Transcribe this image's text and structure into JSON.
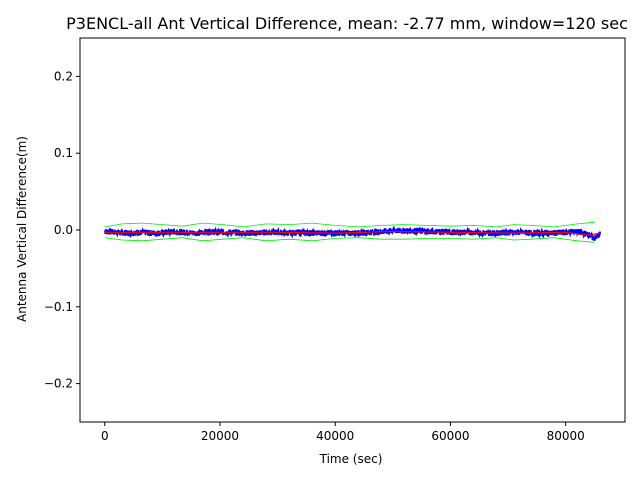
{
  "chart_data": {
    "type": "line",
    "title": "P3ENCL-all Ant Vertical Difference, mean: -2.77 mm, window=120 sec",
    "xlabel": "Time (sec)",
    "ylabel": "Antenna Vertical Difference(m)",
    "xlim": [
      -4300,
      90300
    ],
    "ylim": [
      -0.25,
      0.25
    ],
    "xticks": [
      0,
      20000,
      40000,
      60000,
      80000
    ],
    "xtick_labels": [
      "0",
      "20000",
      "40000",
      "60000",
      "80000"
    ],
    "yticks": [
      0.2,
      0.1,
      0.0,
      -0.1,
      -0.2
    ],
    "ytick_labels": [
      "0.2",
      "0.1",
      "0.0",
      "−0.1",
      "−0.2"
    ],
    "grid": false,
    "series": [
      {
        "role": "raw",
        "color": "#0000ff",
        "x": [
          0,
          2000,
          4000,
          6000,
          8000,
          10000,
          12000,
          14000,
          16000,
          18000,
          20000,
          22000,
          24000,
          26000,
          28000,
          30000,
          32000,
          34000,
          36000,
          38000,
          40000,
          42000,
          44000,
          46000,
          48000,
          50000,
          52000,
          54000,
          56000,
          58000,
          60000,
          62000,
          64000,
          66000,
          68000,
          70000,
          72000,
          74000,
          76000,
          78000,
          80000,
          82000,
          84000,
          85000,
          86000
        ],
        "y": [
          -0.002,
          -0.003,
          -0.004,
          -0.003,
          -0.004,
          -0.004,
          -0.002,
          -0.003,
          -0.004,
          -0.002,
          -0.003,
          -0.003,
          -0.004,
          -0.004,
          -0.003,
          -0.003,
          -0.004,
          -0.003,
          -0.004,
          -0.004,
          -0.004,
          -0.004,
          -0.004,
          -0.003,
          -0.002,
          -0.001,
          -0.001,
          -0.001,
          -0.002,
          -0.002,
          -0.003,
          -0.003,
          -0.003,
          -0.004,
          -0.004,
          -0.003,
          -0.003,
          -0.004,
          -0.004,
          -0.004,
          -0.003,
          -0.002,
          -0.006,
          -0.011,
          -0.005
        ],
        "spread": 0.004
      },
      {
        "role": "mean",
        "color": "#ff0000",
        "x": [
          0,
          10000,
          20000,
          30000,
          40000,
          50000,
          60000,
          70000,
          80000,
          84000,
          86000
        ],
        "y": [
          -0.003,
          -0.003,
          -0.003,
          -0.003,
          -0.004,
          -0.002,
          -0.003,
          -0.004,
          -0.003,
          -0.007,
          -0.004
        ]
      },
      {
        "role": "upper-envelope",
        "color": "#00ee00",
        "x": [
          0,
          3000,
          6500,
          10000,
          13500,
          17000,
          20500,
          24000,
          28000,
          32000,
          36000,
          40000,
          44000,
          48000,
          52000,
          56000,
          60000,
          64000,
          68000,
          71000,
          74000,
          78000,
          82000,
          85000
        ],
        "y": [
          0.004,
          0.008,
          0.009,
          0.007,
          0.005,
          0.009,
          0.007,
          0.004,
          0.008,
          0.007,
          0.009,
          0.006,
          0.004,
          0.006,
          0.007,
          0.006,
          0.005,
          0.006,
          0.004,
          0.007,
          0.006,
          0.004,
          0.008,
          0.01
        ]
      },
      {
        "role": "lower-envelope",
        "color": "#00ee00",
        "x": [
          0,
          3000,
          6500,
          10000,
          13500,
          17000,
          20500,
          24000,
          28000,
          32000,
          36000,
          40000,
          44000,
          48000,
          52000,
          56000,
          60000,
          64000,
          68000,
          71000,
          74000,
          78000,
          82000,
          85000
        ],
        "y": [
          -0.01,
          -0.013,
          -0.014,
          -0.012,
          -0.01,
          -0.014,
          -0.012,
          -0.01,
          -0.014,
          -0.012,
          -0.014,
          -0.011,
          -0.01,
          -0.012,
          -0.012,
          -0.011,
          -0.011,
          -0.012,
          -0.01,
          -0.013,
          -0.012,
          -0.01,
          -0.014,
          -0.016
        ]
      }
    ]
  }
}
